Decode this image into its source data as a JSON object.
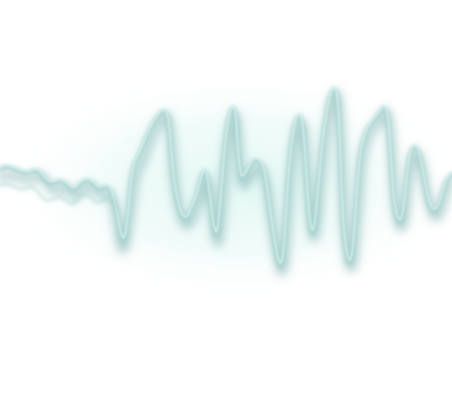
{
  "image": {
    "subject": "sound-wave",
    "colors": {
      "background": "#ffffff",
      "glow": "#e6f8f5",
      "wave_light": "#d7f1ee",
      "wave_mid": "#a9d3d0",
      "wave_dark": "#6fa7a5"
    }
  }
}
